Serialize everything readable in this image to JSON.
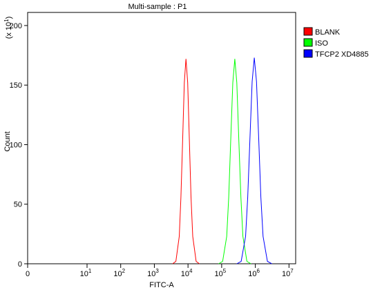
{
  "chart_data": {
    "type": "line",
    "title": "Multi-sample : P1",
    "x_label": "FITC-A",
    "y_label": "Count",
    "y_multiplier": {
      "prefix": "(x 10",
      "exponent": "1",
      "suffix": ")"
    },
    "x_scale": "log",
    "xlim": [
      0,
      15800000
    ],
    "ylim": [
      0,
      211
    ],
    "xticks": [
      0,
      {
        "value": 10,
        "label": "10",
        "exponent": "1"
      },
      {
        "value": 100,
        "label": "10",
        "exponent": "2"
      },
      {
        "value": 1000,
        "label": "10",
        "exponent": "3"
      },
      {
        "value": 10000,
        "label": "10",
        "exponent": "4"
      },
      {
        "value": 100000,
        "label": "10",
        "exponent": "5"
      },
      {
        "value": 1000000,
        "label": "10",
        "exponent": "6"
      },
      {
        "value": 10000000,
        "label": "10",
        "exponent": "7"
      }
    ],
    "yticks": [
      0,
      50,
      100,
      150,
      200
    ],
    "series": [
      {
        "name": "BLANK",
        "color": "#ff0000",
        "x": [
          3470,
          4365,
          5495,
          6166,
          6918,
          7762,
          8710,
          9772,
          10965,
          12303,
          13804,
          17378,
          21878
        ],
        "values": [
          0,
          2,
          23,
          56,
          104,
          152,
          172,
          152,
          104,
          56,
          23,
          2,
          0
        ]
      },
      {
        "name": "ISO",
        "color": "#00ff00",
        "x": [
          81283,
          107152,
          141254,
          162181,
          186209,
          213796,
          245471,
          281838,
          323594,
          371535,
          426580,
          562341,
          741310
        ],
        "values": [
          0,
          2,
          23,
          56,
          104,
          152,
          172,
          152,
          104,
          56,
          23,
          2,
          0
        ]
      },
      {
        "name": "TFCP2 XD4885",
        "color": "#0000ff",
        "x": [
          281838,
          380189,
          512861,
          595662,
          691831,
          803526,
          933254,
          1083927,
          1258925,
          1462177,
          1698244,
          2290868,
          3090295
        ],
        "values": [
          0,
          2,
          23,
          56,
          105,
          153,
          173,
          153,
          105,
          56,
          23,
          2,
          0
        ]
      }
    ]
  }
}
